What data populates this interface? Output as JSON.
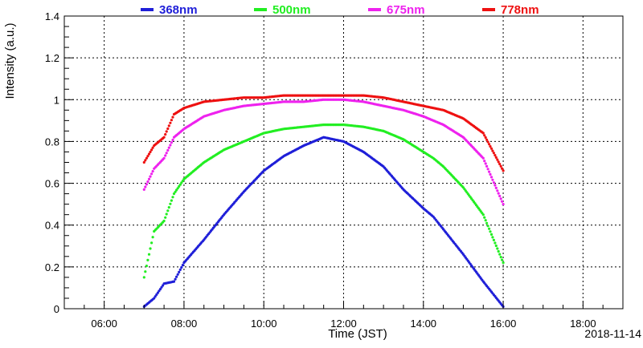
{
  "chart_data": {
    "type": "scatter",
    "title": "",
    "xlabel": "Time (JST)",
    "ylabel": "Intensity (a.u.)",
    "date_label": "2018-11-14",
    "xlim": [
      "05:00",
      "19:00"
    ],
    "ylim": [
      0,
      1.4
    ],
    "x_ticks": [
      "06:00",
      "08:00",
      "10:00",
      "12:00",
      "14:00",
      "16:00",
      "18:00"
    ],
    "y_ticks": [
      "0",
      "0.2",
      "0.4",
      "0.6",
      "0.8",
      "1",
      "1.2",
      "1.4"
    ],
    "grid": true,
    "legend_position": "top",
    "series": [
      {
        "name": "368nm",
        "color": "#1f1fd8",
        "x": [
          "07:00",
          "07:15",
          "07:30",
          "07:45",
          "08:00",
          "08:30",
          "09:00",
          "09:30",
          "10:00",
          "10:30",
          "11:00",
          "11:30",
          "12:00",
          "12:30",
          "13:00",
          "13:30",
          "14:00",
          "14:15",
          "14:30",
          "15:00",
          "15:30",
          "16:00"
        ],
        "y": [
          0.01,
          0.05,
          0.12,
          0.13,
          0.22,
          0.33,
          0.45,
          0.56,
          0.66,
          0.73,
          0.78,
          0.82,
          0.8,
          0.75,
          0.68,
          0.57,
          0.48,
          0.44,
          0.38,
          0.26,
          0.13,
          0.01
        ]
      },
      {
        "name": "500nm",
        "color": "#22ee22",
        "x": [
          "07:00",
          "07:15",
          "07:30",
          "07:45",
          "08:00",
          "08:30",
          "09:00",
          "09:30",
          "10:00",
          "10:30",
          "11:00",
          "11:30",
          "12:00",
          "12:30",
          "13:00",
          "13:30",
          "14:00",
          "14:15",
          "14:30",
          "15:00",
          "15:30",
          "16:00"
        ],
        "y": [
          0.15,
          0.37,
          0.42,
          0.55,
          0.62,
          0.7,
          0.76,
          0.8,
          0.84,
          0.86,
          0.87,
          0.88,
          0.88,
          0.87,
          0.85,
          0.81,
          0.75,
          0.72,
          0.68,
          0.58,
          0.45,
          0.22
        ]
      },
      {
        "name": "675nm",
        "color": "#ee22ee",
        "x": [
          "07:00",
          "07:15",
          "07:30",
          "07:45",
          "08:00",
          "08:30",
          "09:00",
          "09:30",
          "10:00",
          "10:30",
          "11:00",
          "11:30",
          "12:00",
          "12:30",
          "13:00",
          "13:30",
          "14:00",
          "14:15",
          "14:30",
          "15:00",
          "15:30",
          "16:00"
        ],
        "y": [
          0.57,
          0.67,
          0.72,
          0.82,
          0.86,
          0.92,
          0.95,
          0.97,
          0.98,
          0.99,
          0.99,
          1.0,
          1.0,
          0.99,
          0.97,
          0.95,
          0.92,
          0.9,
          0.88,
          0.82,
          0.72,
          0.5
        ]
      },
      {
        "name": "778nm",
        "color": "#ee1111",
        "x": [
          "07:00",
          "07:15",
          "07:30",
          "07:45",
          "08:00",
          "08:30",
          "09:00",
          "09:30",
          "10:00",
          "10:30",
          "11:00",
          "11:30",
          "12:00",
          "12:30",
          "13:00",
          "13:30",
          "14:00",
          "14:15",
          "14:30",
          "15:00",
          "15:30",
          "16:00"
        ],
        "y": [
          0.7,
          0.78,
          0.82,
          0.93,
          0.96,
          0.99,
          1.0,
          1.01,
          1.01,
          1.02,
          1.02,
          1.02,
          1.02,
          1.02,
          1.01,
          0.99,
          0.97,
          0.96,
          0.95,
          0.91,
          0.84,
          0.66
        ]
      }
    ]
  }
}
